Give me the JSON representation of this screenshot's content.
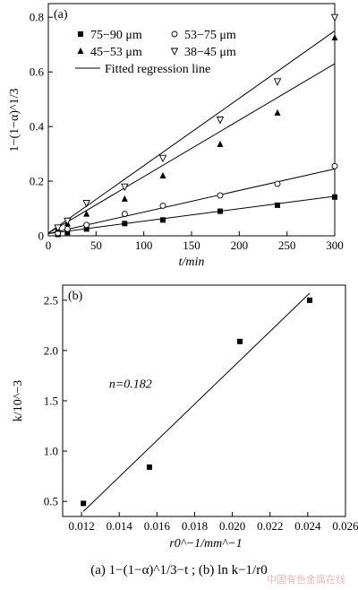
{
  "chart_data": [
    {
      "type": "scatter",
      "panel_label": "(a)",
      "ylabel": "1−(1−α)^1/3",
      "xlabel": "t/min",
      "xlim": [
        0,
        300
      ],
      "ylim": [
        0,
        0.85
      ],
      "xticks": [
        0,
        50,
        100,
        150,
        200,
        250,
        300
      ],
      "yticks": [
        0,
        0.2,
        0.4,
        0.6,
        0.8
      ],
      "xtick_labels": [
        "0",
        "50",
        "100",
        "150",
        "200",
        "250",
        "300"
      ],
      "ytick_labels": [
        "0",
        "0.2",
        "0.4",
        "0.6",
        "0.8"
      ],
      "legend_position": "top-left",
      "fit_label": "Fitted regression line",
      "series": [
        {
          "name": "75−90 μm",
          "marker": "square",
          "x": [
            10,
            20,
            40,
            80,
            120,
            180,
            240,
            300
          ],
          "y": [
            0.005,
            0.012,
            0.025,
            0.045,
            0.058,
            0.09,
            0.112,
            0.142
          ],
          "fit": [
            0,
            0.008,
            300,
            0.145
          ]
        },
        {
          "name": "53−75 μm",
          "marker": "circle",
          "x": [
            10,
            20,
            40,
            80,
            120,
            180,
            240,
            300
          ],
          "y": [
            0.01,
            0.025,
            0.04,
            0.08,
            0.11,
            0.148,
            0.19,
            0.255
          ],
          "fit": [
            0,
            0.008,
            300,
            0.245
          ]
        },
        {
          "name": "45−53 μm",
          "marker": "triangle-up",
          "x": [
            10,
            20,
            40,
            80,
            120,
            180,
            240,
            300
          ],
          "y": [
            0.025,
            0.045,
            0.08,
            0.135,
            0.22,
            0.335,
            0.45,
            0.725
          ],
          "fit": [
            0,
            0.01,
            300,
            0.63
          ]
        },
        {
          "name": "38−45 μm",
          "marker": "triangle-down",
          "x": [
            10,
            20,
            40,
            80,
            120,
            180,
            240,
            300
          ],
          "y": [
            0.03,
            0.055,
            0.12,
            0.18,
            0.285,
            0.425,
            0.565,
            0.8
          ],
          "fit": [
            0,
            0.01,
            300,
            0.75
          ]
        }
      ]
    },
    {
      "type": "scatter",
      "panel_label": "(b)",
      "ylabel": "k/10^−3",
      "xlabel": "r0^−1/mm^−1",
      "xlim": [
        0.011,
        0.026
      ],
      "ylim": [
        0.35,
        2.65
      ],
      "xticks": [
        0.012,
        0.014,
        0.016,
        0.018,
        0.02,
        0.022,
        0.024,
        0.026
      ],
      "yticks": [
        0.5,
        1.0,
        1.5,
        2.0,
        2.5
      ],
      "xtick_labels": [
        "0.012",
        "0.014",
        "0.016",
        "0.018",
        "0.020",
        "0.022",
        "0.024",
        "0.026"
      ],
      "ytick_labels": [
        "0.5",
        "1.0",
        "1.5",
        "2.0",
        "2.5"
      ],
      "annotation": "n=0.182",
      "series": [
        {
          "marker": "square",
          "x": [
            0.0121,
            0.0156,
            0.0204,
            0.0241
          ],
          "y": [
            0.48,
            0.84,
            2.09,
            2.5
          ],
          "fit": [
            0.0121,
            0.4,
            0.0241,
            2.57
          ]
        }
      ]
    }
  ],
  "caption": "(a)   1−(1−α)^1/3−t  ;  (b)  ln k−1/r0",
  "watermark": "中国有色金属在线"
}
